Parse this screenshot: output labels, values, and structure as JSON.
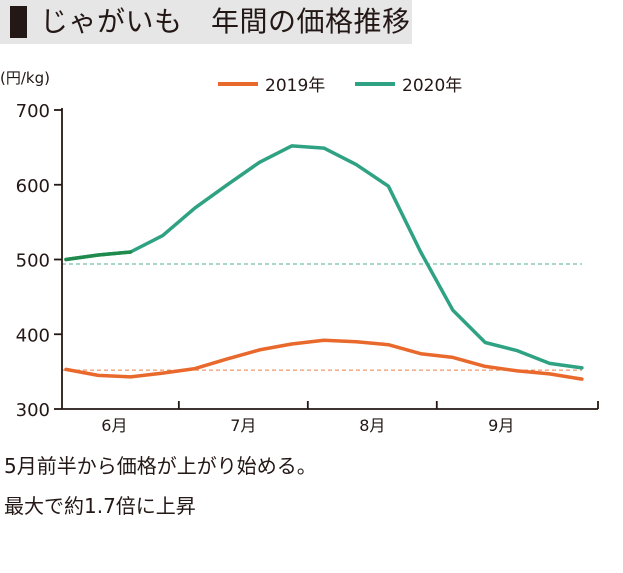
{
  "title": "じゃがいも　年間の価格推移",
  "captions": [
    "5月前半から価格が上がり始める。",
    "最大で約1.7倍に上昇"
  ],
  "colors": {
    "s2019": "#e8692b",
    "s2020": "#2fa283",
    "s2020_start": "#1f8a4c",
    "axis": "#231815",
    "title_bg": "#e6e6e6"
  },
  "chart_data": {
    "type": "line",
    "unit_label": "(円/kg)",
    "ylim": [
      300,
      700
    ],
    "yticks": [
      300,
      400,
      500,
      600,
      700
    ],
    "xlim": [
      0,
      16.5
    ],
    "month_labels": [
      {
        "label": "6月",
        "x": 1.5
      },
      {
        "label": "7月",
        "x": 5.5
      },
      {
        "label": "8月",
        "x": 9.5
      },
      {
        "label": "9月",
        "x": 13.5
      }
    ],
    "month_boundaries": [
      3.5,
      7.5,
      11.5
    ],
    "series": [
      {
        "name": "2019年",
        "color": "#e8692b",
        "x": [
          0,
          1,
          2,
          3,
          4,
          5,
          6,
          7,
          8,
          9,
          10,
          11,
          12,
          13,
          14,
          15,
          16
        ],
        "values": [
          353,
          345,
          343,
          348,
          354,
          367,
          379,
          387,
          392,
          390,
          386,
          374,
          369,
          357,
          351,
          347,
          340
        ],
        "reference": 352
      },
      {
        "name": "2020年",
        "color": "#2fa283",
        "x": [
          0,
          1,
          2,
          3,
          4,
          5,
          6,
          7,
          8,
          9,
          10,
          11,
          12,
          13,
          14,
          15,
          16
        ],
        "values": [
          500,
          506,
          510,
          532,
          569,
          600,
          630,
          652,
          649,
          627,
          598,
          510,
          432,
          389,
          378,
          361,
          355
        ],
        "reference": 494
      }
    ]
  }
}
